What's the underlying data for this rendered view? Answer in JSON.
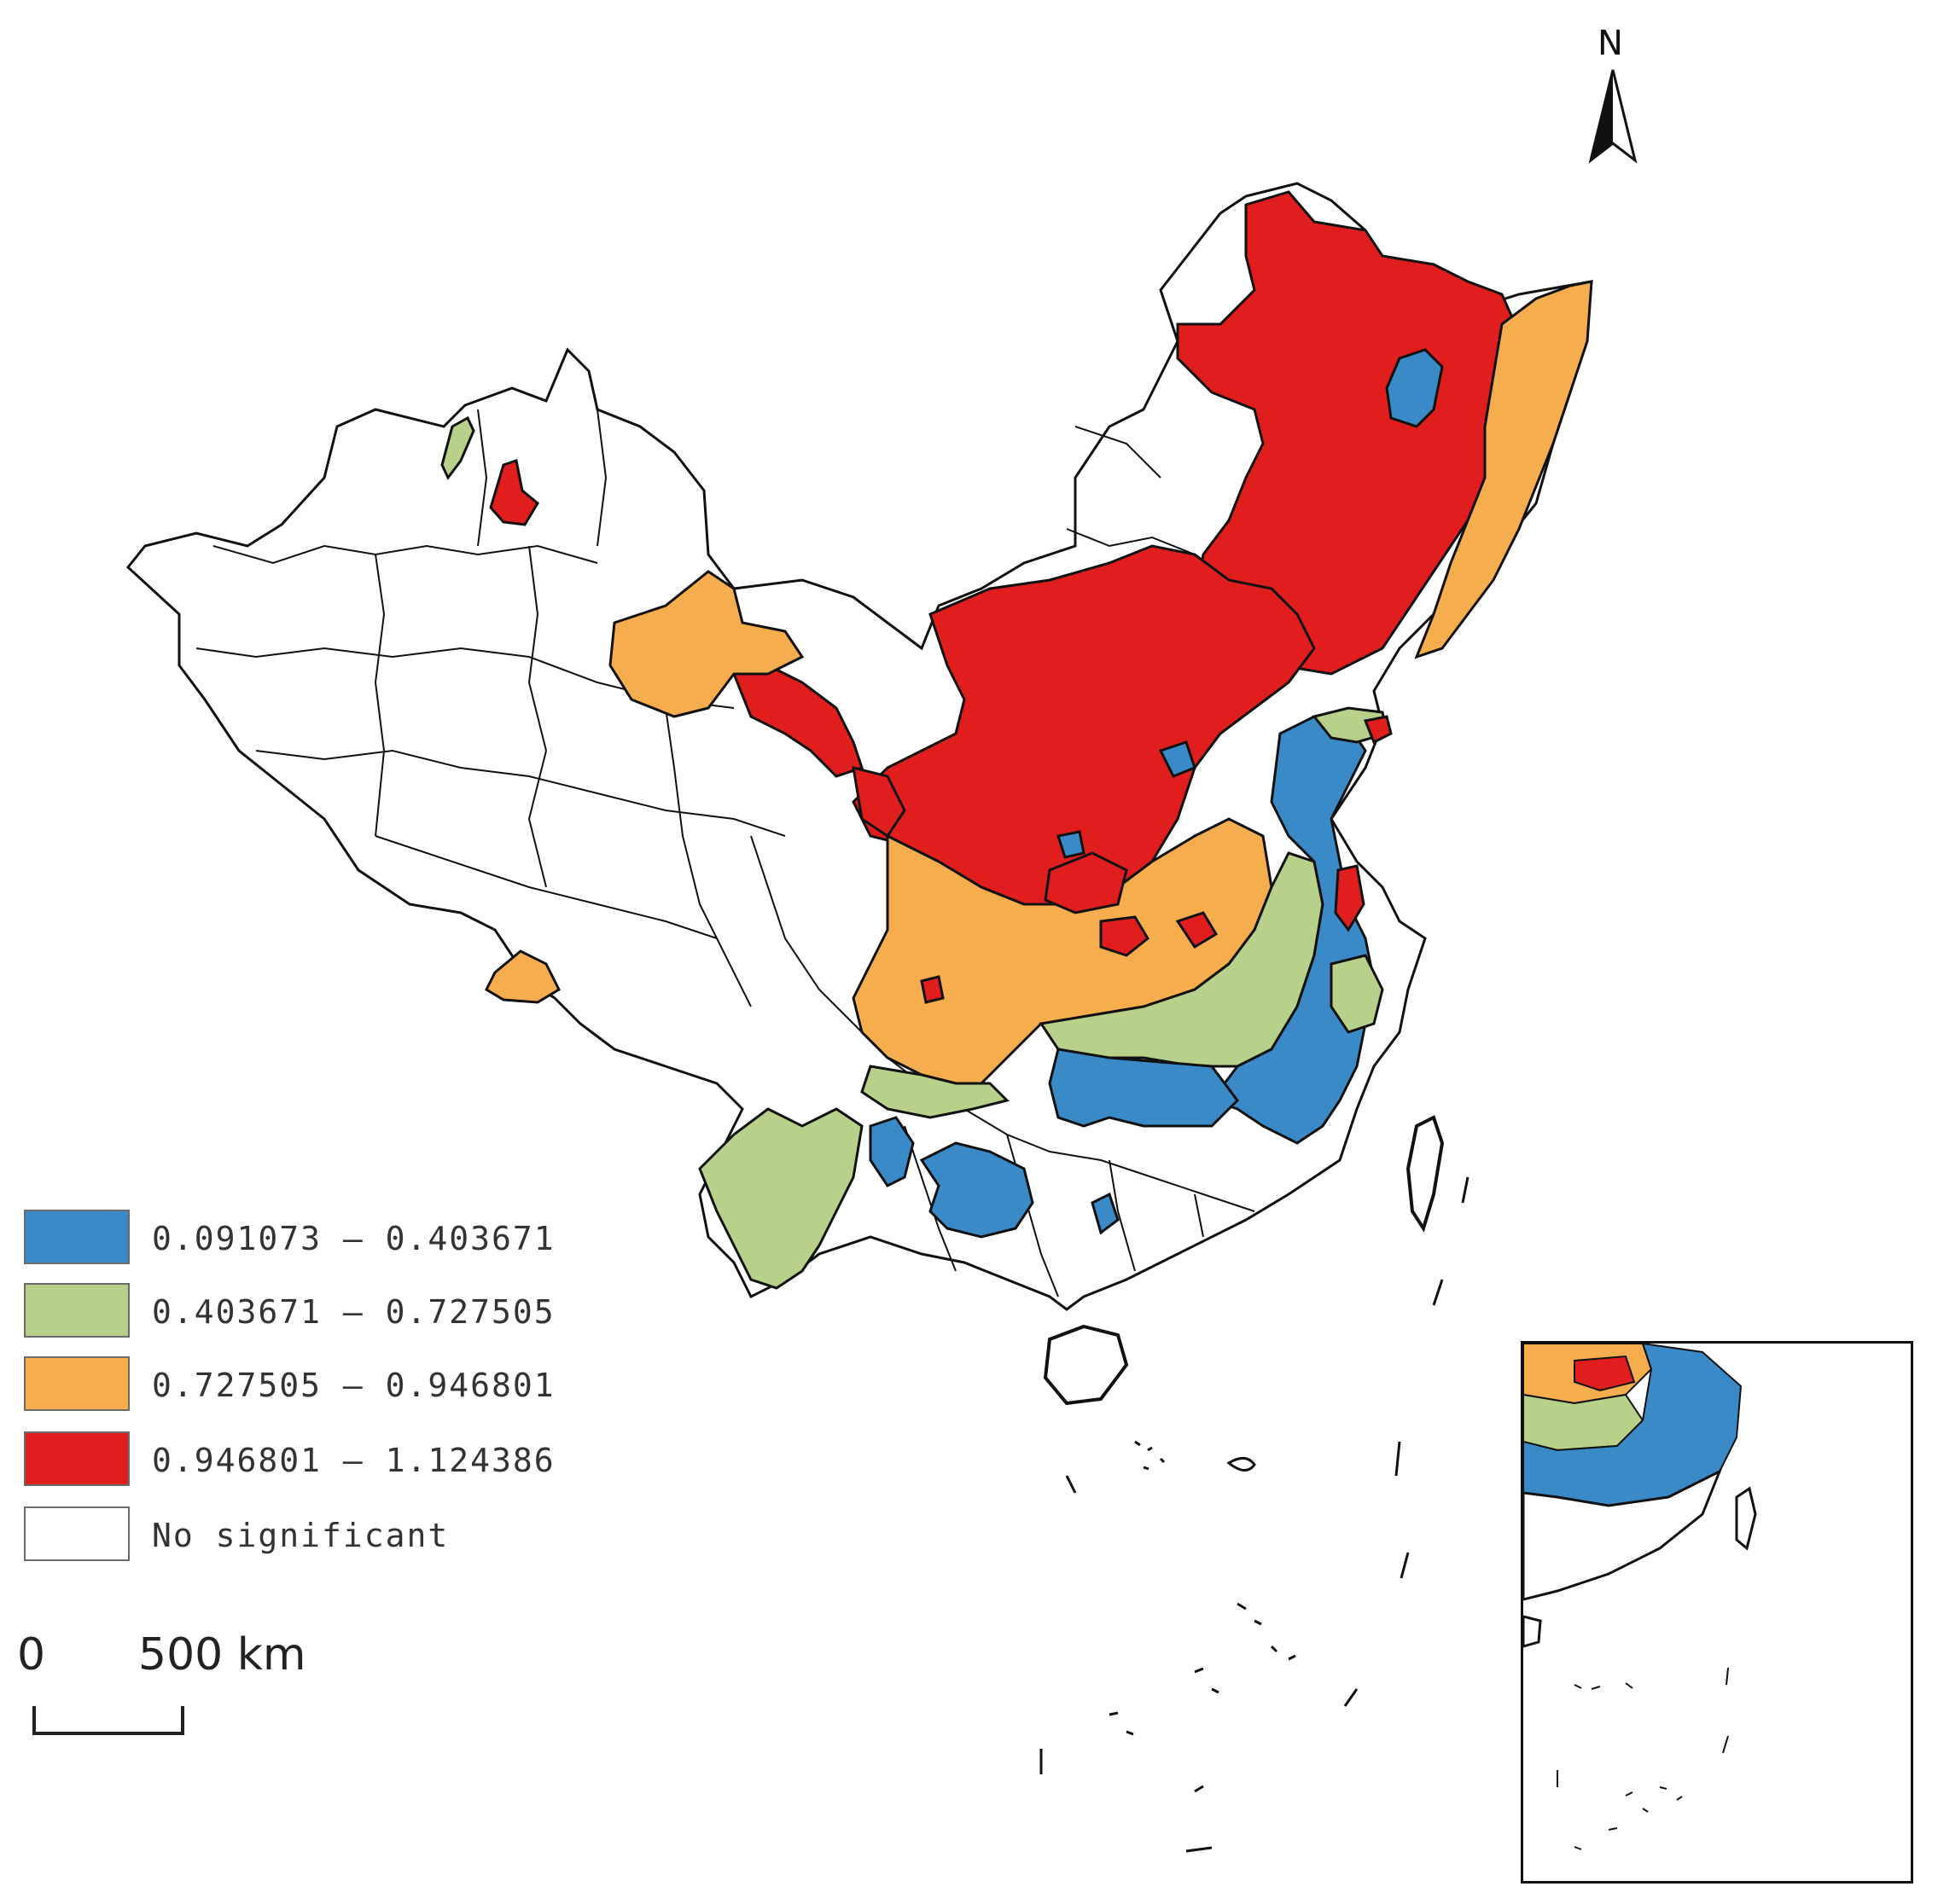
{
  "map": {
    "colors": {
      "class1": "#3b8ac8",
      "class2": "#b7d18a",
      "class3": "#f6ad4e",
      "class4": "#e01e1e",
      "none": "#ffffff",
      "outline": "#111111"
    }
  },
  "legend": {
    "items": [
      {
        "label": "0.091073 — 0.403671",
        "color": "#3b8ac8"
      },
      {
        "label": "0.403671 — 0.727505",
        "color": "#b7d18a"
      },
      {
        "label": "0.727505 — 0.946801",
        "color": "#f6ad4e"
      },
      {
        "label": "0.946801 — 1.124386",
        "color": "#e01e1e"
      },
      {
        "label": "No significant",
        "color": "#ffffff"
      }
    ]
  },
  "scale_bar": {
    "zero": "0",
    "distance": "500 km"
  },
  "north_arrow": {
    "letter": "N"
  }
}
